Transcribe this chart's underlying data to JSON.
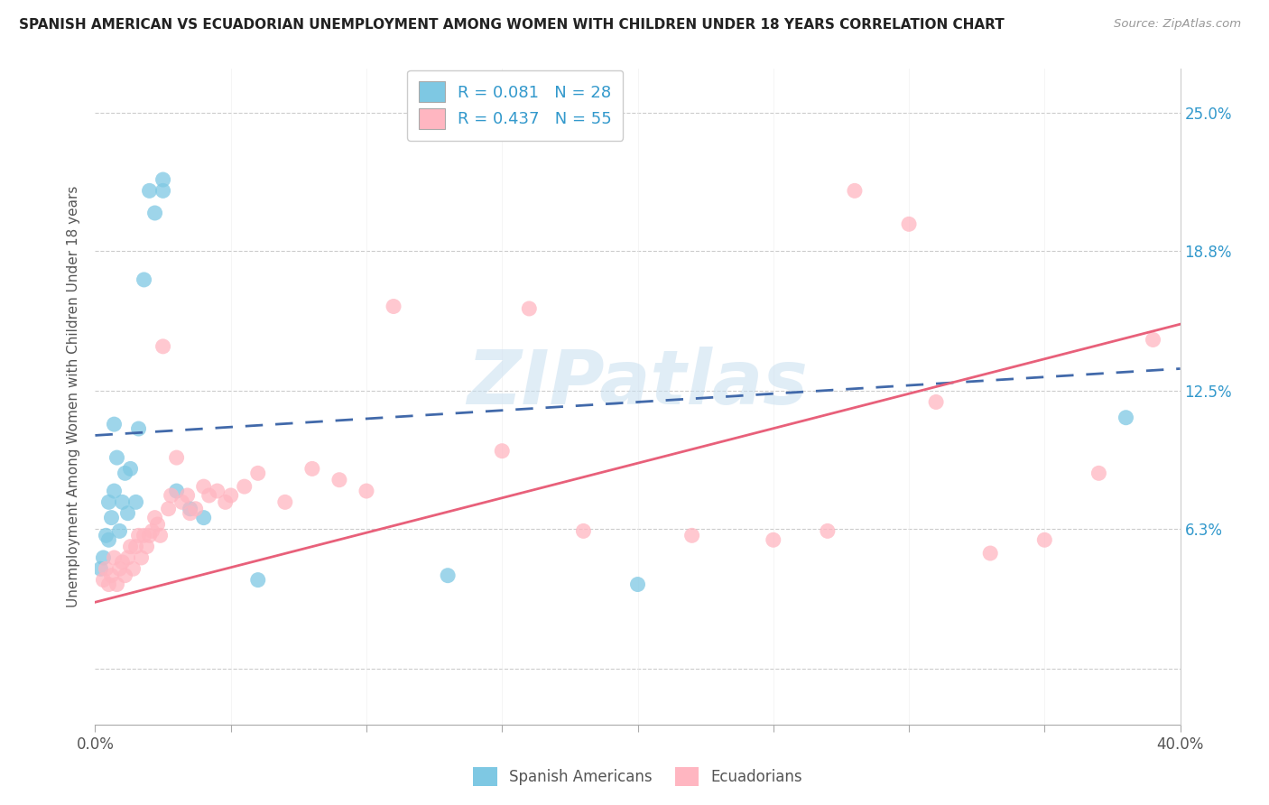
{
  "title": "SPANISH AMERICAN VS ECUADORIAN UNEMPLOYMENT AMONG WOMEN WITH CHILDREN UNDER 18 YEARS CORRELATION CHART",
  "source": "Source: ZipAtlas.com",
  "ylabel": "Unemployment Among Women with Children Under 18 years",
  "y_ticks": [
    0.0,
    0.063,
    0.125,
    0.188,
    0.25
  ],
  "y_tick_labels": [
    "",
    "6.3%",
    "12.5%",
    "18.8%",
    "25.0%"
  ],
  "x_range": [
    0.0,
    0.4
  ],
  "y_range": [
    -0.025,
    0.27
  ],
  "legend_r1": "R = 0.081",
  "legend_n1": "N = 28",
  "legend_r2": "R = 0.437",
  "legend_n2": "N = 55",
  "color_blue": "#7ec8e3",
  "color_pink": "#ffb6c1",
  "color_blue_line": "#4169aa",
  "color_pink_line": "#e8607a",
  "color_text_blue": "#3399cc",
  "color_text_dark": "#333333",
  "watermark": "ZIPatlas",
  "blue_x": [
    0.002,
    0.003,
    0.004,
    0.005,
    0.005,
    0.006,
    0.007,
    0.007,
    0.008,
    0.009,
    0.01,
    0.011,
    0.012,
    0.013,
    0.015,
    0.016,
    0.018,
    0.02,
    0.022,
    0.025,
    0.025,
    0.03,
    0.035,
    0.04,
    0.06,
    0.13,
    0.2,
    0.38
  ],
  "blue_y": [
    0.045,
    0.05,
    0.06,
    0.058,
    0.075,
    0.068,
    0.08,
    0.11,
    0.095,
    0.062,
    0.075,
    0.088,
    0.07,
    0.09,
    0.075,
    0.108,
    0.175,
    0.215,
    0.205,
    0.215,
    0.22,
    0.08,
    0.072,
    0.068,
    0.04,
    0.042,
    0.038,
    0.113
  ],
  "pink_x": [
    0.003,
    0.004,
    0.005,
    0.006,
    0.007,
    0.008,
    0.009,
    0.01,
    0.011,
    0.012,
    0.013,
    0.014,
    0.015,
    0.016,
    0.017,
    0.018,
    0.019,
    0.02,
    0.021,
    0.022,
    0.023,
    0.024,
    0.025,
    0.027,
    0.028,
    0.03,
    0.032,
    0.034,
    0.035,
    0.037,
    0.04,
    0.042,
    0.045,
    0.048,
    0.05,
    0.055,
    0.06,
    0.07,
    0.08,
    0.09,
    0.1,
    0.11,
    0.15,
    0.16,
    0.18,
    0.22,
    0.25,
    0.27,
    0.28,
    0.3,
    0.31,
    0.33,
    0.35,
    0.37,
    0.39
  ],
  "pink_y": [
    0.04,
    0.045,
    0.038,
    0.042,
    0.05,
    0.038,
    0.045,
    0.048,
    0.042,
    0.05,
    0.055,
    0.045,
    0.055,
    0.06,
    0.05,
    0.06,
    0.055,
    0.06,
    0.062,
    0.068,
    0.065,
    0.06,
    0.145,
    0.072,
    0.078,
    0.095,
    0.075,
    0.078,
    0.07,
    0.072,
    0.082,
    0.078,
    0.08,
    0.075,
    0.078,
    0.082,
    0.088,
    0.075,
    0.09,
    0.085,
    0.08,
    0.163,
    0.098,
    0.162,
    0.062,
    0.06,
    0.058,
    0.062,
    0.215,
    0.2,
    0.12,
    0.052,
    0.058,
    0.088,
    0.148
  ],
  "blue_line_x0": 0.0,
  "blue_line_x1": 0.4,
  "blue_line_y0": 0.105,
  "blue_line_y1": 0.135,
  "pink_line_x0": 0.0,
  "pink_line_x1": 0.4,
  "pink_line_y0": 0.03,
  "pink_line_y1": 0.155
}
